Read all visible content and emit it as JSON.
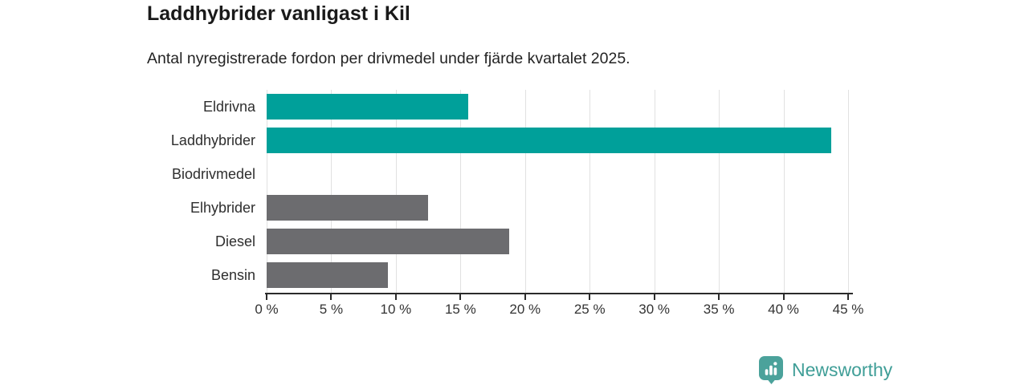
{
  "chart_data": {
    "type": "bar",
    "orientation": "horizontal",
    "title": "Laddhybrider vanligast i Kil",
    "subtitle": "Antal nyregistrerade fordon per drivmedel under fjärde kvartalet 2025.",
    "categories": [
      "Eldrivna",
      "Laddhybrider",
      "Biodrivmedel",
      "Elhybrider",
      "Diesel",
      "Bensin"
    ],
    "values": [
      15.6,
      43.7,
      0,
      12.5,
      18.8,
      9.4
    ],
    "unit": "%",
    "bar_color_keys": [
      "highlight",
      "highlight",
      "default",
      "default",
      "default",
      "default"
    ],
    "palette": {
      "highlight": "#00a09a",
      "default": "#6c6c6f"
    },
    "xlim": [
      0,
      45
    ],
    "x_ticks": [
      {
        "value": 0,
        "label": "0 %"
      },
      {
        "value": 5,
        "label": "5 %"
      },
      {
        "value": 10,
        "label": "10 %"
      },
      {
        "value": 15,
        "label": "15 %"
      },
      {
        "value": 20,
        "label": "20 %"
      },
      {
        "value": 25,
        "label": "25 %"
      },
      {
        "value": 30,
        "label": "30 %"
      },
      {
        "value": 35,
        "label": "35 %"
      },
      {
        "value": 40,
        "label": "40 %"
      },
      {
        "value": 45,
        "label": "45 %"
      }
    ],
    "grid": "vertical",
    "legend": "none",
    "colors": {
      "title_text": "#1a1a1a",
      "subtitle_text": "#232323",
      "category_label_text": "#2e2e2e",
      "tick_label_text": "#333333",
      "gridline": "#e1e1e1",
      "axis_line": "#2b2b2b"
    }
  },
  "brand": {
    "name": "Newsworthy",
    "text_color": "#3f9e97",
    "icon_color": "#4ba29b",
    "icon": "newsworthy-bubble-bar-chart-icon"
  }
}
